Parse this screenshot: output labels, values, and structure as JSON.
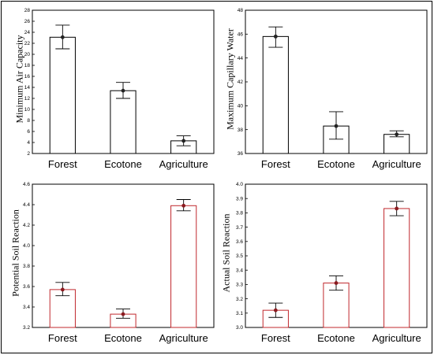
{
  "chart_data": [
    {
      "type": "bar",
      "categories": [
        "Forest",
        "Ecotone",
        "Agriculture"
      ],
      "values": [
        23.1,
        13.4,
        4.3
      ],
      "error_low": [
        21.0,
        12.0,
        3.4
      ],
      "error_high": [
        25.3,
        14.9,
        5.2
      ],
      "ylabel": "Minimum Air Capacity",
      "ylim": [
        2,
        28
      ],
      "yticks": [
        2,
        4,
        6,
        8,
        10,
        12,
        14,
        16,
        18,
        20,
        22,
        24,
        26,
        28
      ],
      "color": "#000000"
    },
    {
      "type": "bar",
      "categories": [
        "Forest",
        "Ecotone",
        "Agriculture"
      ],
      "values": [
        45.8,
        38.3,
        37.6
      ],
      "error_low": [
        44.9,
        37.2,
        37.4
      ],
      "error_high": [
        46.6,
        39.5,
        37.9
      ],
      "ylabel": "Maximum Capillary Water",
      "ylim": [
        36,
        48
      ],
      "yticks": [
        36,
        38,
        40,
        42,
        44,
        46,
        48
      ],
      "color": "#000000"
    },
    {
      "type": "bar",
      "categories": [
        "Forest",
        "Ecotone",
        "Agriculture"
      ],
      "values": [
        3.57,
        3.33,
        4.39
      ],
      "error_low": [
        3.51,
        3.29,
        4.34
      ],
      "error_high": [
        3.64,
        3.38,
        4.45
      ],
      "ylabel": "Potential Soil Reaction",
      "ylim": [
        3.2,
        4.6
      ],
      "yticks": [
        3.2,
        3.4,
        3.6,
        3.8,
        4.0,
        4.2,
        4.4,
        4.6
      ],
      "color": "#c0282d"
    },
    {
      "type": "bar",
      "categories": [
        "Forest",
        "Ecotone",
        "Agriculture"
      ],
      "values": [
        3.12,
        3.31,
        3.83
      ],
      "error_low": [
        3.07,
        3.26,
        3.78
      ],
      "error_high": [
        3.17,
        3.36,
        3.88
      ],
      "ylabel": "Actual  Soil Reaction",
      "ylim": [
        3.0,
        4.0
      ],
      "yticks": [
        3.0,
        3.1,
        3.2,
        3.3,
        3.4,
        3.5,
        3.6,
        3.7,
        3.8,
        3.9,
        4.0
      ],
      "color": "#c0282d"
    }
  ]
}
